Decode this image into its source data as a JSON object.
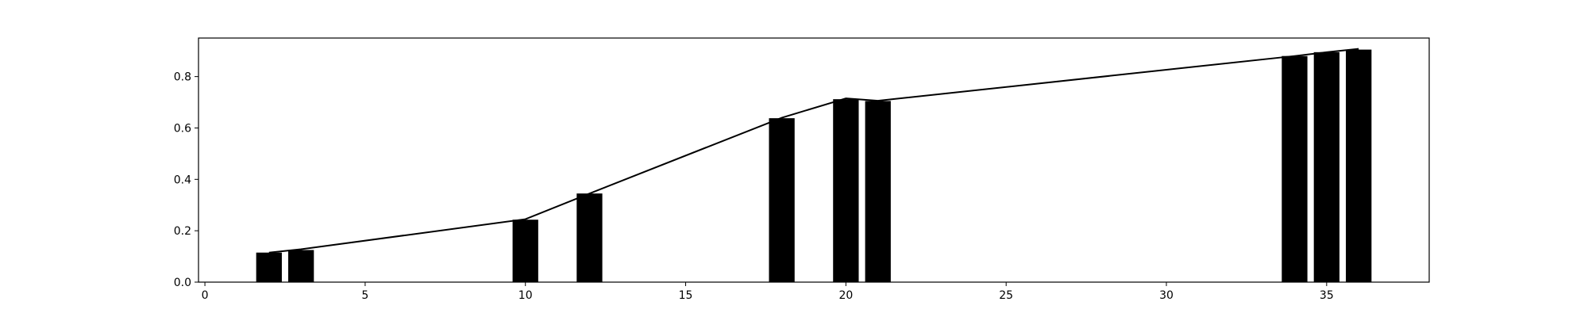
{
  "chart_data": {
    "type": "bar",
    "title": "",
    "xlabel": "",
    "ylabel": "",
    "xlim": [
      -0.2,
      38.2
    ],
    "ylim": [
      0,
      0.95
    ],
    "x_ticks": [
      0,
      5,
      10,
      15,
      20,
      25,
      30,
      35
    ],
    "y_ticks": [
      0.0,
      0.2,
      0.4,
      0.6,
      0.8
    ],
    "y_tick_labels": [
      "0.0",
      "0.2",
      "0.4",
      "0.6",
      "0.8"
    ],
    "bar_width": 0.8,
    "grid": false,
    "legend": "none",
    "colors": {
      "bars": "#000000",
      "line": "#000000",
      "axes": "#000000",
      "background": "#ffffff"
    },
    "series": [
      {
        "type": "bar",
        "x": [
          2,
          3,
          10,
          12,
          18,
          20,
          21,
          34,
          35,
          36
        ],
        "values": [
          0.115,
          0.125,
          0.243,
          0.345,
          0.638,
          0.712,
          0.705,
          0.88,
          0.895,
          0.905
        ]
      },
      {
        "type": "line",
        "x": [
          2,
          3,
          10,
          12,
          18,
          20,
          21,
          34,
          35,
          36
        ],
        "values": [
          0.115,
          0.128,
          0.245,
          0.345,
          0.64,
          0.715,
          0.706,
          0.88,
          0.895,
          0.908
        ]
      }
    ]
  }
}
